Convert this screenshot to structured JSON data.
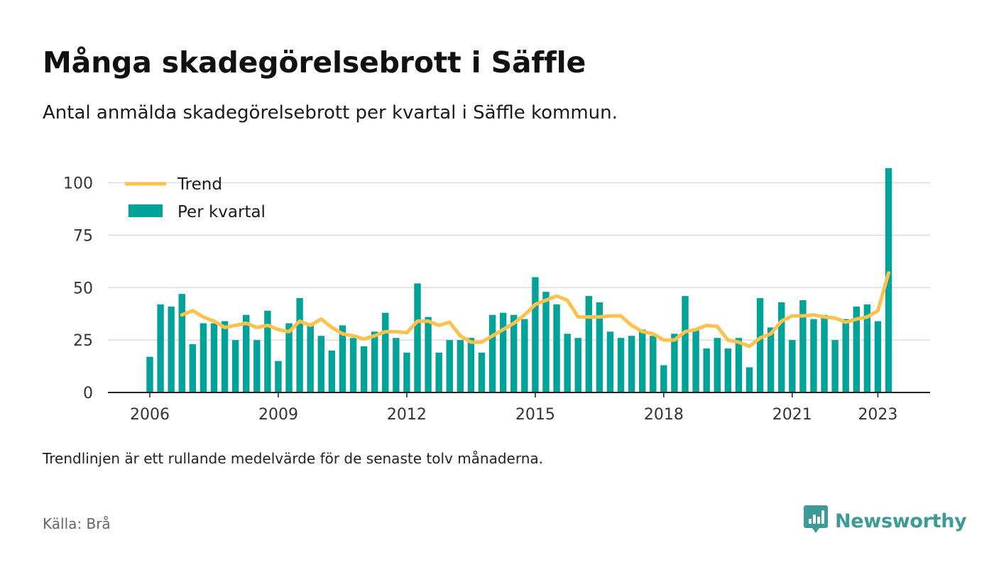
{
  "title": "Många skadegörelsebrott i Säffle",
  "subtitle": "Antal anmälda skadegörelsebrott per kvartal i Säffle kommun.",
  "note": "Trendlinjen är ett rullande medelvärde för de senaste tolv månaderna.",
  "source": "Källa: Brå",
  "brand": {
    "name": "Newsworthy",
    "icon": "newsworthy-logo-icon"
  },
  "colors": {
    "bar": "#00a397",
    "trend": "#fdc24e",
    "grid": "#dcdcdc",
    "axis": "#222222"
  },
  "chart_data": {
    "type": "bar",
    "title": "Många skadegörelsebrott i Säffle",
    "subtitle": "Antal anmälda skadegörelsebrott per kvartal i Säffle kommun.",
    "xlabel": "",
    "ylabel": "",
    "ylim": [
      0,
      110
    ],
    "yticks": [
      0,
      25,
      50,
      75,
      100
    ],
    "xticks": [
      "2006",
      "2009",
      "2012",
      "2015",
      "2018",
      "2021",
      "2023"
    ],
    "grid": true,
    "legend_position": "top-left",
    "x": [
      "2006 Q1",
      "2006 Q2",
      "2006 Q3",
      "2006 Q4",
      "2007 Q1",
      "2007 Q2",
      "2007 Q3",
      "2007 Q4",
      "2008 Q1",
      "2008 Q2",
      "2008 Q3",
      "2008 Q4",
      "2009 Q1",
      "2009 Q2",
      "2009 Q3",
      "2009 Q4",
      "2010 Q1",
      "2010 Q2",
      "2010 Q3",
      "2010 Q4",
      "2011 Q1",
      "2011 Q2",
      "2011 Q3",
      "2011 Q4",
      "2012 Q1",
      "2012 Q2",
      "2012 Q3",
      "2012 Q4",
      "2013 Q1",
      "2013 Q2",
      "2013 Q3",
      "2013 Q4",
      "2014 Q1",
      "2014 Q2",
      "2014 Q3",
      "2014 Q4",
      "2015 Q1",
      "2015 Q2",
      "2015 Q3",
      "2015 Q4",
      "2016 Q1",
      "2016 Q2",
      "2016 Q3",
      "2016 Q4",
      "2017 Q1",
      "2017 Q2",
      "2017 Q3",
      "2017 Q4",
      "2018 Q1",
      "2018 Q2",
      "2018 Q3",
      "2018 Q4",
      "2019 Q1",
      "2019 Q2",
      "2019 Q3",
      "2019 Q4",
      "2020 Q1",
      "2020 Q2",
      "2020 Q3",
      "2020 Q4",
      "2021 Q1",
      "2021 Q2",
      "2021 Q3",
      "2021 Q4",
      "2022 Q1",
      "2022 Q2",
      "2022 Q3",
      "2022 Q4",
      "2023 Q1",
      "2023 Q2"
    ],
    "series": [
      {
        "name": "Per kvartal",
        "kind": "bar",
        "values": [
          17,
          42,
          41,
          47,
          23,
          33,
          33,
          34,
          25,
          37,
          25,
          39,
          15,
          33,
          45,
          32,
          27,
          20,
          32,
          26,
          22,
          29,
          38,
          26,
          19,
          52,
          36,
          19,
          25,
          25,
          26,
          19,
          37,
          38,
          37,
          35,
          55,
          48,
          42,
          28,
          26,
          46,
          43,
          29,
          26,
          27,
          30,
          27,
          13,
          28,
          46,
          30,
          21,
          26,
          21,
          26,
          12,
          45,
          31,
          43,
          25,
          44,
          35,
          37,
          25,
          35,
          41,
          42,
          34,
          107
        ]
      },
      {
        "name": "Trend",
        "kind": "line",
        "values": [
          null,
          null,
          null,
          37,
          39,
          36,
          34,
          31,
          32,
          33,
          31,
          32,
          30,
          29,
          34,
          32,
          35,
          31,
          28,
          27,
          25.5,
          27,
          29,
          29,
          28.5,
          34,
          34,
          32,
          33.5,
          27,
          24,
          24,
          27,
          30,
          33,
          37,
          42,
          44,
          46,
          44,
          36,
          36,
          36,
          36.5,
          36.5,
          32,
          29,
          28,
          25,
          25,
          29,
          30,
          32,
          31.5,
          25,
          24,
          22,
          26,
          28,
          34,
          36.5,
          36.5,
          37,
          36,
          35.5,
          33.5,
          35,
          36,
          39,
          57
        ]
      }
    ]
  }
}
